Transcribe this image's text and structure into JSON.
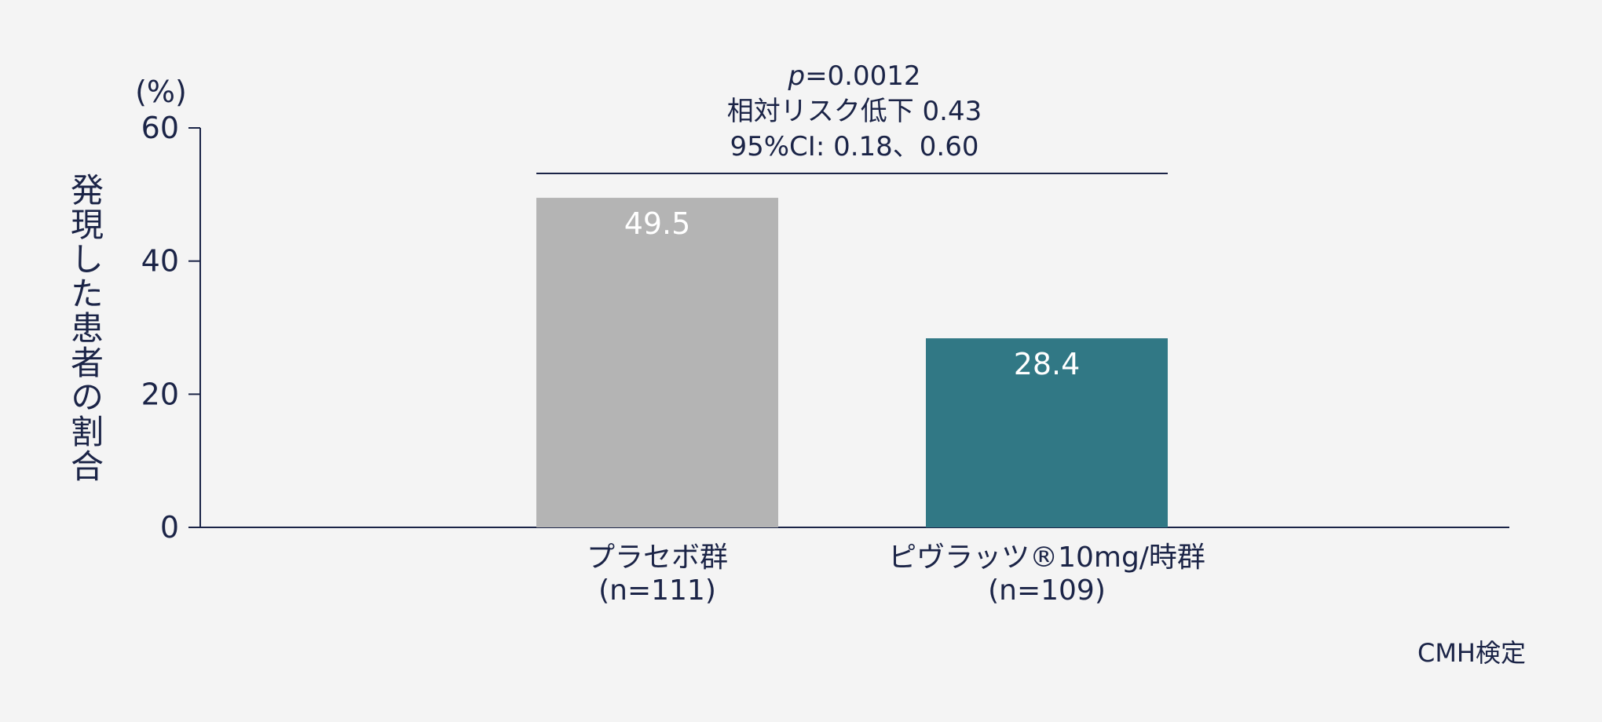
{
  "chart_data": {
    "type": "bar",
    "ylabel": "発現した患者の割合",
    "yunit": "(%)",
    "ylim": [
      0,
      60
    ],
    "yticks": [
      0,
      20,
      40,
      60
    ],
    "categories": [
      {
        "name": "プラセボ群",
        "n": "(n=111)",
        "value": 49.5,
        "value_label": "49.5",
        "color": "#b4b4b4"
      },
      {
        "name": "ピヴラッツ®10mg/時群",
        "n": "(n=109)",
        "value": 28.4,
        "value_label": "28.4",
        "color": "#317885"
      }
    ],
    "annotation": {
      "p_symbol": "p",
      "p_value": "=0.0012",
      "line2": "相対リスク低下 0.43",
      "line3": "95%CI: 0.18、0.60"
    },
    "footnote": "CMH検定",
    "grid": false,
    "legend": "none"
  }
}
